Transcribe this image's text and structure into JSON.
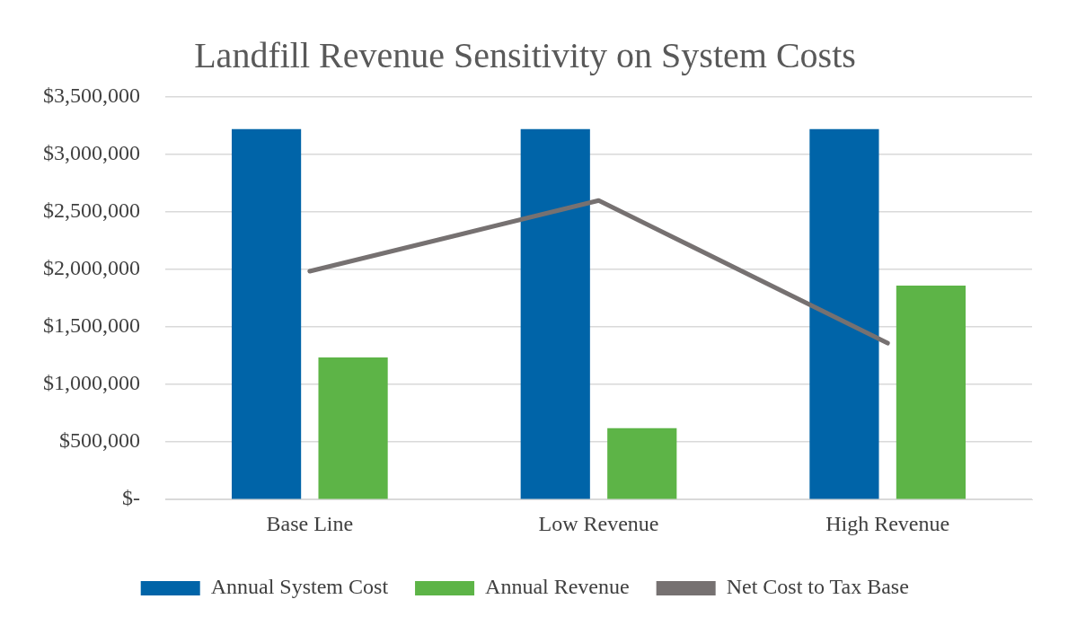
{
  "chart_data": {
    "type": "bar",
    "title": "Landfill Revenue Sensitivity on System Costs",
    "categories": [
      "Base Line",
      "Low Revenue",
      "High Revenue"
    ],
    "series": [
      {
        "name": "Annual System Cost",
        "color": "#0064a8",
        "values": [
          3220000,
          3220000,
          3220000
        ]
      },
      {
        "name": "Annual Revenue",
        "color": "#5db447",
        "values": [
          1235000,
          620000,
          1860000
        ]
      },
      {
        "name": "Net Cost to Tax Base",
        "type": "line",
        "color": "#767171",
        "values": [
          1985000,
          2600000,
          1360000
        ]
      }
    ],
    "ylim": [
      0,
      3500000
    ],
    "yticks": [
      {
        "value": 0,
        "label": "$-"
      },
      {
        "value": 500000,
        "label": "$500,000"
      },
      {
        "value": 1000000,
        "label": "$1,000,000"
      },
      {
        "value": 1500000,
        "label": "$1,500,000"
      },
      {
        "value": 2000000,
        "label": "$2,000,000"
      },
      {
        "value": 2500000,
        "label": "$2,500,000"
      },
      {
        "value": 3000000,
        "label": "$3,000,000"
      },
      {
        "value": 3500000,
        "label": "$3,500,000"
      }
    ],
    "grid": "y",
    "legend": "bottom",
    "marker": "none"
  }
}
